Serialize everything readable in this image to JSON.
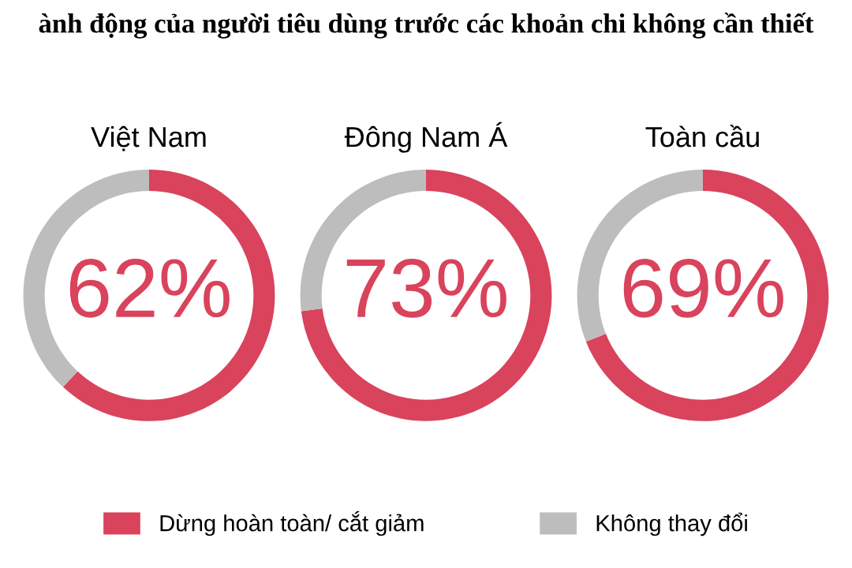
{
  "chart_data": [
    {
      "type": "donut",
      "title": "Việt Nam",
      "categories": [
        "Dừng hoàn toàn/ cắt giảm",
        "Không thay đổi"
      ],
      "values": [
        62,
        38
      ],
      "colors": [
        "#d9435c",
        "#bdbdbd"
      ],
      "value_labels": [
        "62%",
        null
      ],
      "legend": "bottom",
      "annotations": [
        "ành động của người tiêu dùng trước các khoản chi không cần thiết"
      ]
    },
    {
      "type": "donut",
      "title": "Đông Nam Á",
      "categories": [
        null,
        null
      ],
      "values": [
        73,
        27
      ],
      "colors": [
        "#d9435c",
        "#bdbdbd"
      ],
      "value_labels": [
        "73%",
        null
      ]
    },
    {
      "type": "donut",
      "title": "Toàn cầu",
      "categories": [
        null,
        null
      ],
      "values": [
        69,
        31
      ],
      "colors": [
        "#d9435c",
        "#bdbdbd"
      ],
      "value_labels": [
        "69%",
        null
      ]
    }
  ]
}
